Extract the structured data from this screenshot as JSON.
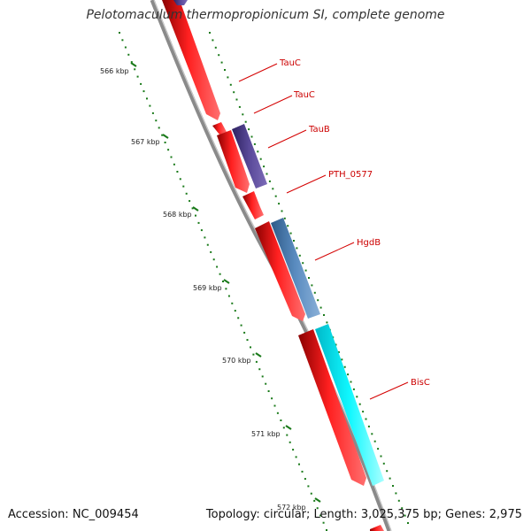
{
  "title": "Pelotomaculum thermopropionicum SI, complete genome",
  "footer": {
    "accession": "Accession: NC_009454",
    "summary": "Topology: circular; Length: 3,025,375 bp; Genes: 2,975"
  },
  "kbp_labels": [
    "566 kbp",
    "567 kbp",
    "568 kbp",
    "569 kbp",
    "570 kbp",
    "571 kbp",
    "572 kbp"
  ],
  "gene_labels": [
    "TauC",
    "TauC",
    "TauB",
    "PTH_0577",
    "HgdB",
    "BisC"
  ],
  "colors": {
    "backbone": "#808080",
    "forward_gene": "#ff0000",
    "reverse_taub": "#4b3c8c",
    "reverse_hgdb": "#4f81b4",
    "reverse_bisc": "#00ffff",
    "tick": "#1a7a1a",
    "label": "#cc0000"
  }
}
